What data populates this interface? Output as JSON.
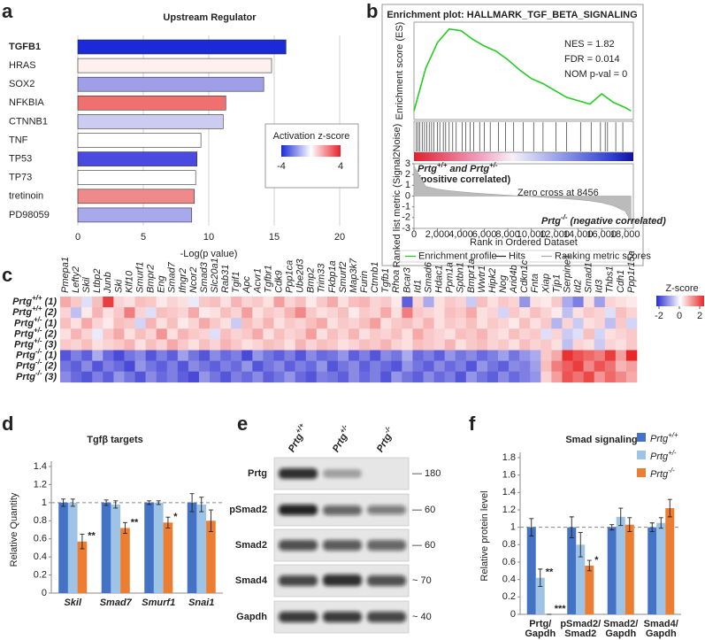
{
  "panel_labels": [
    "a",
    "b",
    "c",
    "d",
    "e",
    "f"
  ],
  "chart_data": [
    {
      "type": "hbar",
      "title": "Upstream Regulator",
      "categories": [
        "TGFB1",
        "HRAS",
        "SOX2",
        "NFKBIA",
        "CTNNB1",
        "TNF",
        "TP53",
        "TP73",
        "tretinoin",
        "PD98059"
      ],
      "values": [
        15.9,
        14.8,
        14.2,
        11.3,
        11.1,
        9.4,
        9.1,
        9.0,
        8.9,
        8.7
      ],
      "colors": [
        "#1a2ad6",
        "#fff0f0",
        "#9f9fe8",
        "#f07070",
        "#ccccf2",
        "#ffffff",
        "#4a4ae0",
        "#ffffff",
        "#f08a8a",
        "#a8a8ec"
      ],
      "xlim": [
        0,
        20
      ],
      "xticks": [
        0,
        5,
        10,
        15,
        20
      ],
      "xlabel": "-Log(p value)",
      "grid": true,
      "legend": {
        "title": "Activation z-score",
        "zlim": [
          -4,
          4
        ],
        "ticks": [
          -4,
          4
        ],
        "colors": [
          "#1a2ad6",
          "#ffffff",
          "#e8202a"
        ]
      }
    },
    {
      "type": "gsea",
      "title": "Enrichment plot: HALLMARK_TGF_BETA_SIGNALING",
      "annotations": [
        "NES = 1.82",
        "FDR = 0.014",
        "NOM p-val = 0"
      ],
      "ylabel": "Enrichment score (ES)",
      "x": [
        0,
        1000,
        2000,
        3000,
        4000,
        5000,
        6000,
        7000,
        8000,
        9000,
        10000,
        11000,
        12000,
        13000,
        14000,
        15000,
        16000,
        17000,
        18000,
        18500
      ],
      "values": [
        0,
        0.25,
        0.4,
        0.48,
        0.47,
        0.42,
        0.38,
        0.35,
        0.3,
        0.24,
        0.19,
        0.16,
        0.12,
        0.08,
        0.06,
        0.04,
        0.1,
        0.05,
        0.02,
        0
      ],
      "color": "#22cc22",
      "ylim": [
        -0.05,
        0.52
      ],
      "hits": [
        200,
        350,
        500,
        700,
        900,
        1100,
        1300,
        1500,
        1700,
        2000,
        2200,
        2500,
        2700,
        3000,
        3300,
        3600,
        4100,
        4400,
        4800,
        5100,
        5600,
        6000,
        6500,
        7200,
        7800,
        8500,
        9300,
        10200,
        11000,
        12100,
        13000,
        14200,
        15100,
        15900,
        16300,
        16500,
        17200,
        17800
      ],
      "metric": {
        "ylabel": "Ranked list metric (Signal2Noise)",
        "values": [
          2.8,
          0.9,
          0.65,
          0.5,
          0.4,
          0.3,
          0.22,
          0.15,
          0.08,
          0.01,
          -0.05,
          -0.11,
          -0.18,
          -0.25,
          -0.34,
          -0.45,
          -0.62,
          -0.9,
          -1.4,
          -2.4
        ],
        "ylim": [
          -3,
          3
        ],
        "yticks": [
          3,
          2,
          1,
          0,
          -1,
          -2,
          -3
        ],
        "zero_cross": "Zero cross at 8456"
      },
      "positive_label": [
        {
          "text": "Prtg"
        },
        {
          "text": "+/+",
          "style": "sup"
        },
        {
          "text": " and "
        },
        {
          "text": "Prtg"
        },
        {
          "text": "+/-",
          "style": "sup"
        }
      ],
      "positive_note": "(positive correlated)",
      "negative_label": [
        {
          "text": "Prtg"
        },
        {
          "text": "-/-",
          "style": "sup"
        },
        {
          "text": " (negative correlated)"
        }
      ],
      "xlabel": "Rank in Ordered Dataset",
      "xlim": [
        0,
        18700
      ],
      "xticks": [
        0,
        {
          "value": 2000,
          "label": "2,000"
        },
        {
          "value": 4000,
          "label": "4,000"
        },
        {
          "value": 6000,
          "label": "6,000"
        },
        {
          "value": 8000,
          "label": "8,000"
        },
        {
          "value": 10000,
          "label": "10,000"
        },
        {
          "value": 12000,
          "label": "12,000"
        },
        {
          "value": 14000,
          "label": "14,000"
        },
        {
          "value": 16000,
          "label": "16,000"
        },
        {
          "value": 18000,
          "label": "18,000"
        }
      ],
      "legend": [
        "Enrichment profile",
        "Hits",
        "Ranking metric scores"
      ]
    },
    {
      "type": "heatmap",
      "genes": [
        "Pmepa1",
        "Lefty2",
        "Skil",
        "Ltbp2",
        "Junb",
        "Ski",
        "Klf10",
        "Smurf1",
        "Bmpr2",
        "Eng",
        "Smad7",
        "Ifngr2",
        "Ncor2",
        "Smad3",
        "Slc20a1",
        "Rab31",
        "Tgif1",
        "Apc",
        "Acvr1",
        "Tgfbr1",
        "Cdk9",
        "Ppp1ca",
        "Ube2d3",
        "Bmp2",
        "Trim33",
        "Fkbp1a",
        "Smurf2",
        "Map3k7",
        "Furin",
        "Ctnnb1",
        "Tgfb1",
        "Rhoa",
        "Bcar3",
        "Id1",
        "Smad6",
        "Hdac1",
        "Ppm1a",
        "Sptbn1",
        "Bmpr1a",
        "Wwtr1",
        "Hipk2",
        "Nog",
        "Arid4b",
        "Cdkn1c",
        "Fnta",
        "Xiap",
        "Tjp1",
        "Serpine1",
        "Id2",
        "Smad1",
        "Id3",
        "Thbs1",
        "Cdh1",
        "Ppp1r15a"
      ],
      "row_labels": [
        [
          {
            "text": "Prtg"
          },
          {
            "text": "+/+",
            "style": "sup"
          },
          {
            "text": " (1)"
          }
        ],
        [
          {
            "text": "Prtg"
          },
          {
            "text": "+/+",
            "style": "sup"
          },
          {
            "text": " (2)"
          }
        ],
        [
          {
            "text": "Prtg"
          },
          {
            "text": "+/-",
            "style": "sup"
          },
          {
            "text": " (1)"
          }
        ],
        [
          {
            "text": "Prtg"
          },
          {
            "text": "+/-",
            "style": "sup"
          },
          {
            "text": " (2)"
          }
        ],
        [
          {
            "text": "Prtg"
          },
          {
            "text": "+/-",
            "style": "sup"
          },
          {
            "text": " (3)"
          }
        ],
        [
          {
            "text": "Prtg"
          },
          {
            "text": "-/-",
            "style": "sup"
          },
          {
            "text": " (1)"
          }
        ],
        [
          {
            "text": "Prtg"
          },
          {
            "text": "-/-",
            "style": "sup"
          },
          {
            "text": " (2)"
          }
        ],
        [
          {
            "text": "Prtg"
          },
          {
            "text": "-/-",
            "style": "sup"
          },
          {
            "text": " (3)"
          }
        ]
      ],
      "values": [
        [
          0.8,
          0.5,
          -0.3,
          0.6,
          1.8,
          0.4,
          0.3,
          0.6,
          0.5,
          0.2,
          0.4,
          0.3,
          -0.2,
          0.5,
          0.6,
          0.3,
          0.7,
          0.4,
          0.5,
          0.3,
          0.9,
          0.4,
          0.6,
          0.2,
          0.5,
          0.8,
          0.3,
          0.6,
          0.7,
          0.4,
          0.5,
          0.2,
          -1.5,
          0.4,
          -0.8,
          0.3,
          0.5,
          0.4,
          -0.5,
          0.6,
          0.3,
          0.5,
          0.4,
          -1.0,
          0.3,
          0.2,
          0.5,
          -0.8,
          -1.2,
          0.3,
          -0.9,
          0.4,
          0.3,
          0.2
        ],
        [
          0.4,
          -0.6,
          0.2,
          0.7,
          0.3,
          0.5,
          1.2,
          0.4,
          -0.3,
          0.6,
          0.5,
          0.4,
          0.8,
          0.2,
          0.3,
          0.6,
          0.4,
          0.9,
          0.3,
          0.5,
          0.4,
          0.7,
          1.1,
          0.5,
          0.3,
          0.4,
          0.6,
          0.2,
          0.5,
          0.4,
          0.8,
          0.3,
          1.2,
          0.5,
          0.4,
          0.3,
          0.6,
          0.5,
          0.8,
          0.3,
          0.4,
          -0.4,
          0.5,
          0.3,
          0.6,
          0.4,
          0.2,
          -0.6,
          0.3,
          0.5,
          0.4,
          -0.3,
          0.6,
          0.4
        ],
        [
          0.6,
          0.3,
          0.8,
          0.4,
          0.2,
          0.6,
          0.5,
          -0.4,
          0.7,
          0.3,
          0.6,
          0.2,
          0.4,
          0.8,
          0.5,
          0.3,
          -0.5,
          0.6,
          0.4,
          0.7,
          0.3,
          0.5,
          0.4,
          0.6,
          0.8,
          0.3,
          0.5,
          0.4,
          0.6,
          0.9,
          0.3,
          0.5,
          0.6,
          0.4,
          0.7,
          0.3,
          0.5,
          0.4,
          0.6,
          0.3,
          0.5,
          0.4,
          0.2,
          0.6,
          0.3,
          0.5,
          -0.7,
          0.4,
          -0.5,
          0.3,
          0.4,
          -0.6,
          0.5,
          -0.4
        ],
        [
          0.3,
          0.7,
          0.4,
          -0.2,
          0.5,
          0.8,
          0.3,
          0.6,
          0.4,
          1.0,
          0.3,
          0.7,
          0.5,
          0.4,
          -0.3,
          0.6,
          0.4,
          0.5,
          0.8,
          0.3,
          0.6,
          0.4,
          0.5,
          0.9,
          0.3,
          0.6,
          0.4,
          0.7,
          0.3,
          0.5,
          0.4,
          0.6,
          0.3,
          0.8,
          0.5,
          0.4,
          0.3,
          0.6,
          0.5,
          0.7,
          0.4,
          0.3,
          0.6,
          0.4,
          0.5,
          -0.3,
          0.4,
          -0.5,
          -0.3,
          0.6,
          -0.4,
          0.3,
          0.4,
          0.5
        ],
        [
          0.5,
          0.4,
          0.6,
          0.3,
          0.4,
          0.5,
          0.7,
          0.3,
          0.6,
          0.4,
          0.8,
          0.5,
          0.3,
          0.6,
          0.4,
          0.7,
          0.5,
          0.3,
          0.4,
          0.6,
          0.5,
          0.3,
          0.7,
          0.4,
          0.6,
          0.5,
          0.3,
          0.4,
          0.6,
          0.5,
          0.7,
          0.4,
          0.3,
          0.6,
          0.5,
          0.4,
          0.7,
          0.3,
          0.5,
          0.6,
          0.4,
          0.5,
          0.3,
          0.6,
          0.4,
          0.5,
          0.3,
          -0.6,
          0.4,
          0.3,
          -0.5,
          0.4,
          0.3,
          0.5
        ],
        [
          -1.6,
          -1.2,
          -1.5,
          -0.8,
          -1.4,
          -1.7,
          -1.3,
          -1.1,
          -1.6,
          -1.2,
          -1.5,
          -0.9,
          -1.3,
          -1.6,
          -1.1,
          -1.4,
          -1.2,
          -1.7,
          -1.0,
          -1.3,
          -1.5,
          -1.2,
          -1.6,
          -1.1,
          -1.4,
          -1.3,
          -1.0,
          -1.5,
          -1.2,
          -1.6,
          -1.1,
          -1.3,
          -0.8,
          -1.4,
          -1.2,
          -1.5,
          -1.0,
          -1.3,
          -1.1,
          -1.4,
          -1.2,
          -0.9,
          -1.3,
          -1.0,
          -0.8,
          0.5,
          0.8,
          1.9,
          1.6,
          1.4,
          1.2,
          1.8,
          0.9,
          2.1
        ],
        [
          -1.3,
          -1.5,
          -1.1,
          -1.6,
          -1.2,
          -1.4,
          -1.7,
          -1.0,
          -1.3,
          -1.5,
          -1.2,
          -1.6,
          -1.1,
          -1.3,
          -1.5,
          -1.2,
          -1.4,
          -1.0,
          -1.6,
          -1.3,
          -1.1,
          -1.5,
          -1.2,
          -1.4,
          -1.0,
          -1.6,
          -1.3,
          -1.1,
          -1.5,
          -1.2,
          -1.4,
          -1.6,
          -1.0,
          -1.3,
          -1.5,
          -1.1,
          -1.4,
          -1.2,
          -1.6,
          -1.0,
          -1.3,
          -1.5,
          -1.1,
          -1.2,
          -0.9,
          0.6,
          1.2,
          1.5,
          1.8,
          1.1,
          1.6,
          1.3,
          0.7,
          0.9
        ],
        [
          -1.1,
          -1.4,
          -1.6,
          -1.2,
          -1.5,
          -1.0,
          -1.3,
          -1.6,
          -1.1,
          -1.4,
          -1.2,
          -1.5,
          -1.7,
          -1.0,
          -1.3,
          -1.6,
          -1.2,
          -1.4,
          -1.1,
          -1.5,
          -1.3,
          -1.0,
          -1.4,
          -1.6,
          -1.2,
          -1.3,
          -1.5,
          -1.1,
          -1.4,
          -1.2,
          -1.6,
          -1.0,
          -1.3,
          -1.5,
          -1.1,
          -1.4,
          -1.2,
          -1.6,
          -1.0,
          -1.3,
          -1.5,
          -1.1,
          -1.4,
          -1.2,
          -1.0,
          0.4,
          0.9,
          1.6,
          1.3,
          1.7,
          1.0,
          1.4,
          1.1,
          0.8
        ]
      ],
      "zlim": [
        -2,
        2
      ],
      "zticks": [
        -2,
        0,
        2
      ],
      "legend_title": "Z-score",
      "colors": [
        "#2a2ad0",
        "#ffffff",
        "#e82828"
      ]
    },
    {
      "type": "grouped_bar",
      "title": "Tgfβ targets",
      "ylabel": "Relative Quantity",
      "italic_categories": true,
      "categories": [
        [
          "Skil"
        ],
        [
          "Smad7"
        ],
        [
          "Smurf1"
        ],
        [
          "Snai1"
        ]
      ],
      "series": [
        {
          "color": "#4472c4",
          "values": [
            1.0,
            1.0,
            1.0,
            1.0
          ],
          "errors": [
            0.04,
            0.03,
            0.02,
            0.1
          ]
        },
        {
          "color": "#9dc3e6",
          "values": [
            1.0,
            0.98,
            1.0,
            0.98
          ],
          "errors": [
            0.04,
            0.04,
            0.02,
            0.08
          ]
        },
        {
          "color": "#ed7d31",
          "values": [
            0.57,
            0.72,
            0.78,
            0.8
          ],
          "errors": [
            0.08,
            0.06,
            0.06,
            0.12
          ],
          "stars": [
            "**",
            "**",
            "*",
            null
          ]
        }
      ],
      "ylim": [
        0,
        1.4
      ],
      "yticks": [
        0,
        0.2,
        0.4,
        0.6,
        0.8,
        1,
        1.2,
        1.4
      ],
      "reference_line": 1
    },
    {
      "type": "grouped_bar",
      "title": "Smad signaling",
      "ylabel": "Relative protein level",
      "italic_categories": false,
      "categories": [
        [
          "Prtg/",
          "Gapdh"
        ],
        [
          "pSmad2/",
          "Smad2"
        ],
        [
          "Smad2/",
          "Gapdh"
        ],
        [
          "Smad4/",
          "Gapdh"
        ]
      ],
      "series": [
        {
          "color": "#4472c4",
          "values": [
            1.0,
            1.0,
            1.0,
            1.0
          ],
          "errors": [
            0.1,
            0.12,
            0.03,
            0.05
          ]
        },
        {
          "color": "#9dc3e6",
          "values": [
            0.42,
            0.8,
            1.12,
            1.05
          ],
          "errors": [
            0.1,
            0.14,
            0.1,
            0.06
          ],
          "stars": [
            "**",
            null,
            null,
            null
          ]
        },
        {
          "color": "#ed7d31",
          "values": [
            0,
            0.56,
            1.03,
            1.22
          ],
          "errors": [
            0,
            0.06,
            0.08,
            0.1
          ],
          "stars": [
            "***",
            "*",
            null,
            null
          ]
        }
      ],
      "ylim": [
        0,
        1.8
      ],
      "yticks": [
        0,
        0.2,
        0.4,
        0.6,
        0.8,
        1,
        1.2,
        1.4,
        1.6,
        1.8
      ],
      "reference_line": 1
    }
  ],
  "shared_legend": [
    [
      {
        "text": "Prtg"
      },
      {
        "text": "+/+",
        "style": "sup"
      }
    ],
    [
      {
        "text": "Prtg"
      },
      {
        "text": "+/-",
        "style": "sup"
      }
    ],
    [
      {
        "text": "Prtg"
      },
      {
        "text": "-/-",
        "style": "sup"
      }
    ]
  ],
  "blot": {
    "lanes": [
      [
        {
          "text": "Prtg"
        },
        {
          "text": "+/+",
          "style": "sup"
        }
      ],
      [
        {
          "text": "Prtg"
        },
        {
          "text": "+/-",
          "style": "sup"
        }
      ],
      [
        {
          "text": "Prtg"
        },
        {
          "text": "-/-",
          "style": "sup"
        }
      ]
    ],
    "rows": [
      {
        "label": "Prtg",
        "marker": "— 180"
      },
      {
        "label": "pSmad2",
        "marker": "— 60"
      },
      {
        "label": "Smad2",
        "marker": "— 60"
      },
      {
        "label": "Smad4",
        "marker": "~ 70"
      },
      {
        "label": "Gapdh",
        "marker": "~ 40"
      }
    ]
  }
}
